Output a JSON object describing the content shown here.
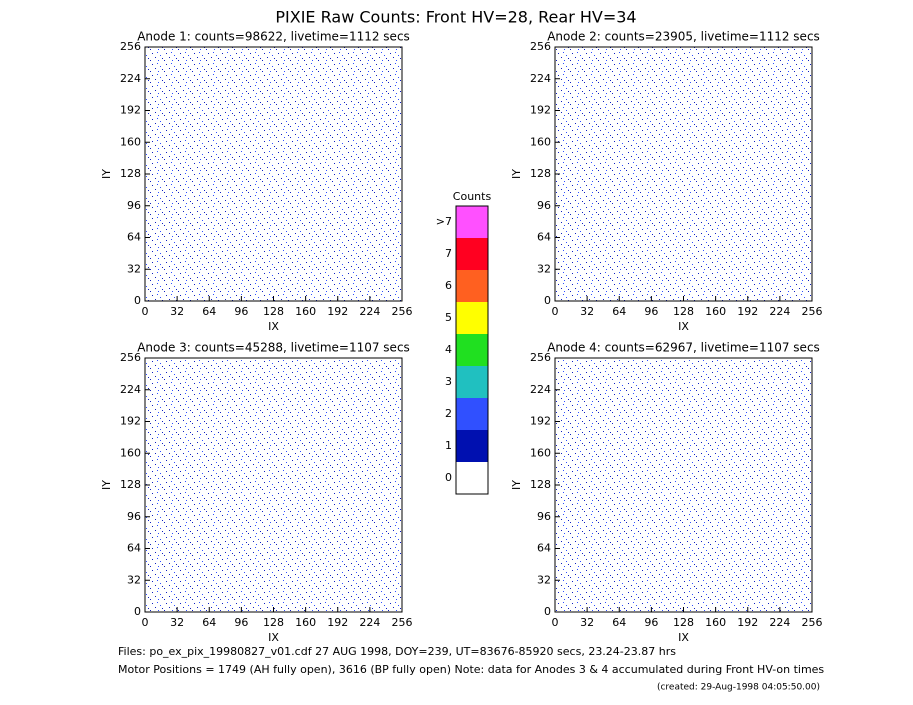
{
  "title": "PIXIE Raw Counts:  Front HV=28, Rear HV=34",
  "chart_data": [
    {
      "type": "image",
      "title": "Anode 1: counts=98622, livetime=1112 secs",
      "xlabel": "IX",
      "ylabel": "IY",
      "xlim": [
        0,
        256
      ],
      "ylim": [
        0,
        256
      ],
      "xticks": [
        0,
        32,
        64,
        96,
        128,
        160,
        192,
        224,
        256
      ],
      "yticks": [
        0,
        32,
        64,
        96,
        128,
        160,
        192,
        224,
        256
      ]
    },
    {
      "type": "image",
      "title": "Anode 2: counts=23905, livetime=1112 secs",
      "xlabel": "IX",
      "ylabel": "IY",
      "xlim": [
        0,
        256
      ],
      "ylim": [
        0,
        256
      ],
      "xticks": [
        0,
        32,
        64,
        96,
        128,
        160,
        192,
        224,
        256
      ],
      "yticks": [
        0,
        32,
        64,
        96,
        128,
        160,
        192,
        224,
        256
      ]
    },
    {
      "type": "image",
      "title": "Anode 3: counts=45288, livetime=1107 secs",
      "xlabel": "IX",
      "ylabel": "IY",
      "xlim": [
        0,
        256
      ],
      "ylim": [
        0,
        256
      ],
      "xticks": [
        0,
        32,
        64,
        96,
        128,
        160,
        192,
        224,
        256
      ],
      "yticks": [
        0,
        32,
        64,
        96,
        128,
        160,
        192,
        224,
        256
      ]
    },
    {
      "type": "image",
      "title": "Anode 4: counts=62967, livetime=1107 secs",
      "xlabel": "IX",
      "ylabel": "IY",
      "xlim": [
        0,
        256
      ],
      "ylim": [
        0,
        256
      ],
      "xticks": [
        0,
        32,
        64,
        96,
        128,
        160,
        192,
        224,
        256
      ],
      "yticks": [
        0,
        32,
        64,
        96,
        128,
        160,
        192,
        224,
        256
      ]
    }
  ],
  "colorbar": {
    "title": "Counts",
    "levels": [
      0,
      1,
      2,
      3,
      4,
      5,
      6,
      7,
      ">7"
    ],
    "colors": [
      "#ffffff",
      "#0010b0",
      "#3050ff",
      "#20c0c0",
      "#20e020",
      "#ffff00",
      "#ff6020",
      "#ff0020",
      "#ff50ff"
    ]
  },
  "footer": {
    "files": "Files: po_ex_pix_19980827_v01.cdf    27 AUG 1998, DOY=239, UT=83676-85920 secs, 23.24-23.87 hrs",
    "motor": "Motor Positions = 1749 (AH fully open), 3616 (BP fully open)    Note: data for Anodes 3 & 4 accumulated during Front HV-on times",
    "created": "(created: 29-Aug-1998 04:05:50.00)"
  }
}
